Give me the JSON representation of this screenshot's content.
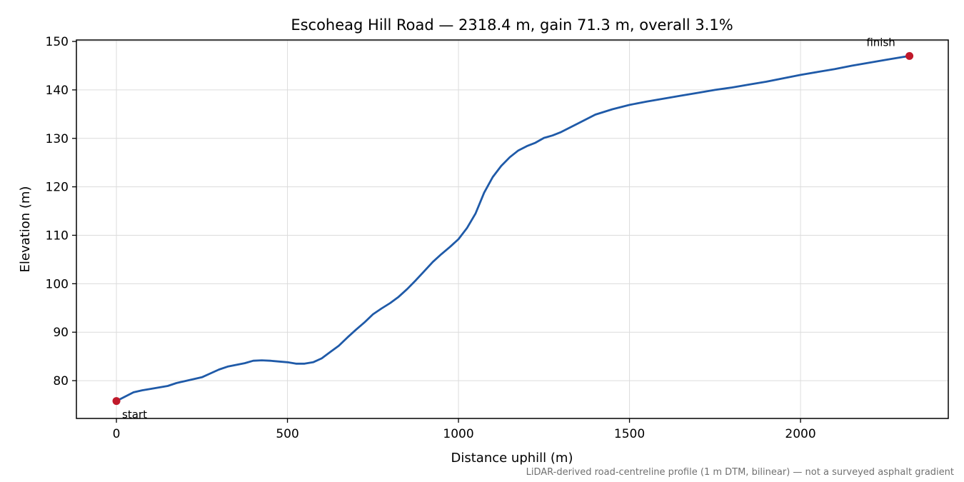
{
  "chart_data": {
    "type": "line",
    "title": "Escoheag Hill Road — 2318.4 m, gain 71.3 m, overall 3.1%",
    "xlabel": "Distance uphill (m)",
    "ylabel": "Elevation (m)",
    "xlim": [
      -117,
      2432
    ],
    "ylim": [
      72.2,
      150.3
    ],
    "xticks": [
      0,
      500,
      1000,
      1500,
      2000
    ],
    "yticks": [
      80,
      90,
      100,
      110,
      120,
      130,
      140,
      150
    ],
    "grid": true,
    "line_color": "#1f5aa8",
    "marker_color": "#c0192a",
    "series": [
      {
        "x": [
          0,
          25,
          50,
          75,
          100,
          150,
          175,
          200,
          250,
          275,
          300,
          325,
          375,
          400,
          425,
          450,
          500,
          525,
          550,
          575,
          600,
          625,
          650,
          675,
          700,
          725,
          750,
          775,
          800,
          825,
          850,
          875,
          900,
          925,
          950,
          975,
          1000,
          1025,
          1050,
          1075,
          1100,
          1125,
          1150,
          1175,
          1200,
          1225,
          1250,
          1275,
          1300,
          1350,
          1400,
          1450,
          1500,
          1550,
          1600,
          1650,
          1700,
          1750,
          1800,
          1850,
          1900,
          1950,
          2000,
          2050,
          2100,
          2150,
          2200,
          2250,
          2300,
          2318.4
        ],
        "y": [
          75.8,
          76.7,
          77.6,
          78.0,
          78.3,
          78.9,
          79.5,
          79.9,
          80.7,
          81.5,
          82.3,
          82.9,
          83.6,
          84.1,
          84.2,
          84.1,
          83.8,
          83.5,
          83.5,
          83.8,
          84.6,
          85.9,
          87.2,
          88.9,
          90.5,
          92.0,
          93.7,
          94.9,
          96.0,
          97.3,
          98.9,
          100.7,
          102.6,
          104.5,
          106.1,
          107.6,
          109.2,
          111.5,
          114.5,
          118.8,
          122.0,
          124.3,
          126.1,
          127.5,
          128.4,
          129.1,
          130.1,
          130.6,
          131.3,
          133.1,
          134.9,
          136.0,
          136.9,
          137.6,
          138.2,
          138.8,
          139.4,
          140.0,
          140.5,
          141.1,
          141.7,
          142.4,
          143.1,
          143.7,
          144.3,
          145.0,
          145.6,
          146.2,
          146.8,
          147.0
        ]
      }
    ],
    "annotations": [
      {
        "text": "start",
        "x": 0,
        "y": 75.8
      },
      {
        "text": "finish",
        "x": 2318.4,
        "y": 147.0
      }
    ],
    "caption": "LiDAR-derived road-centreline profile (1 m DTM, bilinear) — not a surveyed asphalt gradient"
  }
}
